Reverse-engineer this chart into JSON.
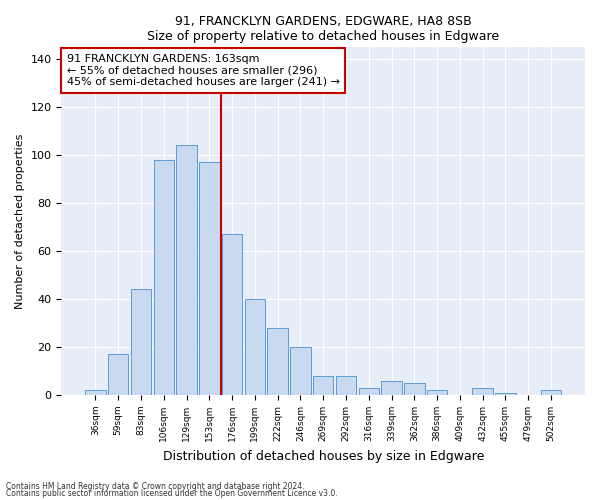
{
  "title1": "91, FRANCKLYN GARDENS, EDGWARE, HA8 8SB",
  "title2": "Size of property relative to detached houses in Edgware",
  "xlabel": "Distribution of detached houses by size in Edgware",
  "ylabel": "Number of detached properties",
  "categories": [
    "36sqm",
    "59sqm",
    "83sqm",
    "106sqm",
    "129sqm",
    "153sqm",
    "176sqm",
    "199sqm",
    "222sqm",
    "246sqm",
    "269sqm",
    "292sqm",
    "316sqm",
    "339sqm",
    "362sqm",
    "386sqm",
    "409sqm",
    "432sqm",
    "455sqm",
    "479sqm",
    "502sqm"
  ],
  "values": [
    2,
    17,
    44,
    98,
    104,
    97,
    67,
    40,
    28,
    20,
    8,
    8,
    3,
    6,
    5,
    2,
    0,
    3,
    1,
    0,
    2
  ],
  "bar_color": "#c8d9f0",
  "bar_edge_color": "#5b9bd5",
  "vline_x": 5.5,
  "vline_color": "#cc0000",
  "annotation_text": "91 FRANCKLYN GARDENS: 163sqm\n← 55% of detached houses are smaller (296)\n45% of semi-detached houses are larger (241) →",
  "annotation_box_color": "#ffffff",
  "annotation_box_edge_color": "#cc0000",
  "ylim": [
    0,
    145
  ],
  "yticks": [
    0,
    20,
    40,
    60,
    80,
    100,
    120,
    140
  ],
  "footnote1": "Contains HM Land Registry data © Crown copyright and database right 2024.",
  "footnote2": "Contains public sector information licensed under the Open Government Licence v3.0.",
  "bg_color": "#e8eef8",
  "fig_bg_color": "#ffffff"
}
